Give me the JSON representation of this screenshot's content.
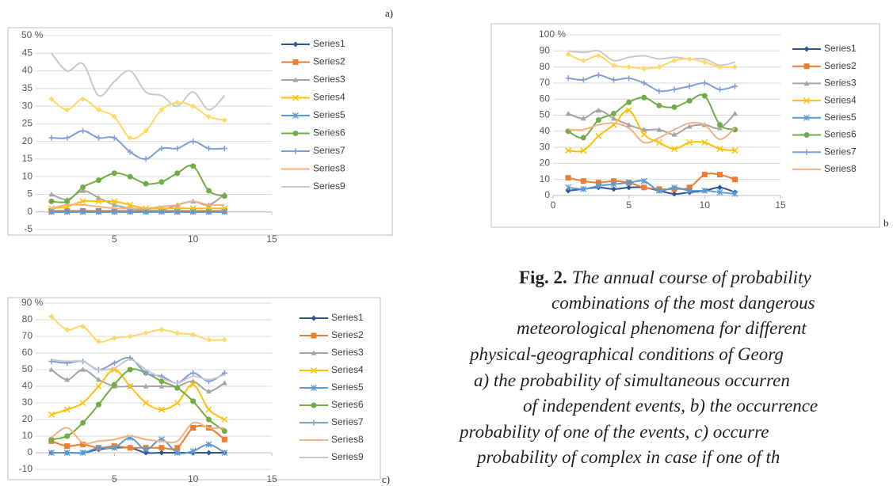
{
  "chart_data": [
    {
      "type": "line",
      "panel_label": "a)",
      "x": [
        1,
        2,
        3,
        4,
        5,
        6,
        7,
        8,
        9,
        10,
        11,
        12
      ],
      "xlim": [
        0,
        15
      ],
      "xticks": [
        5,
        10,
        15
      ],
      "ylim": [
        -5,
        50
      ],
      "yticks": [
        -5,
        0,
        5,
        10,
        15,
        20,
        25,
        30,
        35,
        40,
        45,
        {
          "value": 50,
          "label": "50 %"
        }
      ],
      "grid": true,
      "series": [
        {
          "name": "Series1",
          "color": "#2f5597",
          "marker": "diamond",
          "values": [
            0,
            0,
            0,
            0,
            0,
            0,
            0,
            0,
            0,
            0,
            0,
            0
          ]
        },
        {
          "name": "Series2",
          "color": "#ed7d31",
          "marker": "square",
          "values": [
            0.3,
            0.3,
            0.3,
            0.3,
            0.3,
            0.3,
            0.3,
            0.3,
            0.3,
            0.3,
            0.3,
            0.3
          ]
        },
        {
          "name": "Series3",
          "color": "#a5a5a5",
          "marker": "triangle",
          "values": [
            5,
            3.5,
            6,
            4,
            2,
            1,
            0.5,
            0.5,
            2,
            3,
            2,
            5
          ]
        },
        {
          "name": "Series4",
          "color": "#ffc000",
          "marker": "x",
          "values": [
            1,
            1.5,
            3,
            3,
            3,
            2,
            1,
            1,
            1,
            1,
            1,
            1
          ]
        },
        {
          "name": "Series5",
          "color": "#5b9bd5",
          "marker": "star",
          "values": [
            0,
            0,
            0,
            0,
            0,
            0,
            0,
            0,
            0,
            0,
            0,
            0
          ]
        },
        {
          "name": "Series6",
          "color": "#70ad47",
          "marker": "circle",
          "values": [
            3,
            3,
            7,
            9,
            11,
            10,
            8,
            8.5,
            11,
            13,
            6,
            4.5
          ]
        },
        {
          "name": "Series7",
          "color": "#7f9fd6",
          "marker": "plus",
          "values": [
            21,
            21,
            23,
            21,
            21,
            17,
            15,
            18,
            18,
            20,
            18,
            18
          ]
        },
        {
          "name": "Series8",
          "color": "#f4b183",
          "marker": "none",
          "values": [
            1,
            2,
            2,
            1.5,
            1,
            1,
            1,
            1.5,
            2,
            3,
            2,
            2
          ]
        },
        {
          "name": "Series9",
          "color": "#c9c9c9",
          "marker": "none",
          "values": [
            45,
            40,
            42,
            33,
            37,
            40,
            34,
            33,
            30,
            34,
            29,
            33
          ]
        },
        {
          "color": "#ffd966",
          "marker": "diamond",
          "values": [
            32,
            29,
            32,
            29,
            27,
            21,
            23,
            29,
            31,
            30,
            27,
            26
          ]
        }
      ]
    },
    {
      "type": "line",
      "panel_label": "b",
      "x": [
        1,
        2,
        3,
        4,
        5,
        6,
        7,
        8,
        9,
        10,
        11,
        12
      ],
      "xlim": [
        0,
        15
      ],
      "xticks": [
        0,
        5,
        10,
        15
      ],
      "ylim": [
        0,
        100
      ],
      "yticks": [
        0,
        10,
        20,
        30,
        40,
        50,
        60,
        70,
        80,
        90,
        {
          "value": 100,
          "label": "100 %"
        }
      ],
      "grid": true,
      "series": [
        {
          "name": "Series1",
          "color": "#2f5597",
          "marker": "diamond",
          "values": [
            3,
            4,
            5,
            4,
            5,
            5,
            3,
            1,
            2,
            3,
            5,
            2
          ]
        },
        {
          "name": "Series2",
          "color": "#ed7d31",
          "marker": "square",
          "values": [
            11,
            9,
            8,
            9,
            8,
            5,
            4,
            4,
            5,
            13,
            13,
            10
          ]
        },
        {
          "name": "Series3",
          "color": "#a5a5a5",
          "marker": "triangle",
          "values": [
            51,
            48,
            53,
            48,
            44,
            41,
            41,
            38,
            43,
            44,
            42,
            51
          ]
        },
        {
          "name": "Series4",
          "color": "#ffc000",
          "marker": "x",
          "values": [
            28,
            28,
            37,
            44,
            53,
            38,
            33,
            29,
            33,
            33,
            29,
            28
          ]
        },
        {
          "name": "Series5",
          "color": "#5b9bd5",
          "marker": "star",
          "values": [
            5,
            4,
            6,
            7,
            8,
            9,
            3,
            5,
            3,
            3,
            2,
            1
          ]
        },
        {
          "name": "Series6",
          "color": "#70ad47",
          "marker": "circle",
          "values": [
            40,
            36,
            47,
            51,
            58,
            61,
            56,
            55,
            59,
            62,
            44,
            41
          ]
        },
        {
          "name": "Series7",
          "color": "#7f9fd6",
          "marker": "plus",
          "values": [
            73,
            72,
            75,
            72,
            73,
            70,
            65,
            66,
            68,
            70,
            66,
            68
          ]
        },
        {
          "name": "Series8",
          "color": "#f4b183",
          "marker": "none",
          "values": [
            41,
            41,
            44,
            45,
            42,
            33,
            36,
            41,
            45,
            44,
            35,
            42
          ]
        },
        {
          "color": "#c9c9c9",
          "marker": "none",
          "values": [
            90,
            89,
            90,
            84,
            86,
            87,
            85,
            86,
            85,
            85,
            81,
            83
          ]
        },
        {
          "color": "#ffd966",
          "marker": "diamond",
          "values": [
            88,
            84,
            87,
            81,
            80,
            79,
            80,
            84,
            85,
            83,
            80,
            80
          ]
        }
      ]
    },
    {
      "type": "line",
      "panel_label": "c)",
      "x": [
        1,
        2,
        3,
        4,
        5,
        6,
        7,
        8,
        9,
        10,
        11,
        12
      ],
      "xlim": [
        0,
        15
      ],
      "xticks": [
        5,
        10,
        15
      ],
      "ylim": [
        -10,
        90
      ],
      "yticks": [
        -10,
        0,
        10,
        20,
        30,
        40,
        50,
        60,
        70,
        80,
        {
          "value": 90,
          "label": "90 %"
        }
      ],
      "grid": true,
      "series": [
        {
          "name": "Series1",
          "color": "#2f5597",
          "marker": "diamond",
          "values": [
            0,
            0,
            0,
            2,
            3,
            3,
            0,
            0,
            0,
            0,
            0,
            0
          ]
        },
        {
          "name": "Series2",
          "color": "#ed7d31",
          "marker": "square",
          "values": [
            7,
            4,
            5,
            3,
            4,
            3,
            3,
            3,
            3,
            15,
            15,
            8
          ]
        },
        {
          "name": "Series3",
          "color": "#a5a5a5",
          "marker": "triangle",
          "values": [
            50,
            44,
            50,
            44,
            40,
            40,
            40,
            40,
            40,
            43,
            37,
            42
          ]
        },
        {
          "name": "Series4",
          "color": "#ffc000",
          "marker": "x",
          "values": [
            23,
            26,
            30,
            40,
            50,
            40,
            30,
            26,
            30,
            41,
            26,
            20
          ]
        },
        {
          "name": "Series5",
          "color": "#5b9bd5",
          "marker": "star",
          "values": [
            0,
            0,
            0,
            3,
            3,
            9,
            2,
            8,
            0,
            1,
            5,
            0
          ]
        },
        {
          "name": "Series6",
          "color": "#70ad47",
          "marker": "circle",
          "values": [
            8,
            10,
            18,
            29,
            41,
            50,
            48,
            43,
            39,
            31,
            20,
            13
          ]
        },
        {
          "name": "Series7",
          "color": "#7f9fd6",
          "marker": "plus",
          "values": [
            55,
            54,
            55,
            50,
            54,
            57,
            48,
            46,
            42,
            48,
            43,
            48
          ]
        },
        {
          "name": "Series8",
          "color": "#f4b183",
          "marker": "none",
          "values": [
            9,
            15,
            6,
            7,
            8,
            10,
            8,
            7,
            7,
            18,
            15,
            15
          ]
        },
        {
          "name": "Series9",
          "color": "#c9c9c9",
          "marker": "none",
          "values": [
            56,
            55,
            55,
            50,
            51,
            56,
            50,
            45,
            42,
            46,
            44,
            47
          ]
        },
        {
          "color": "#ffd966",
          "marker": "diamond",
          "values": [
            82,
            74,
            76,
            67,
            69,
            70,
            72,
            74,
            72,
            71,
            68,
            68
          ]
        }
      ]
    }
  ],
  "caption": {
    "label": "Fig. 2.",
    "lines": [
      "The annual course of probability",
      "combinations of the most dangerous",
      "meteorological phenomena for different",
      "physical-geographical conditions of Georg",
      "a) the probability of simultaneous occurren",
      "of independent events, b) the occurrence",
      "probability of one of the events, c) occurre",
      "probability of complex in case if one of th"
    ]
  }
}
